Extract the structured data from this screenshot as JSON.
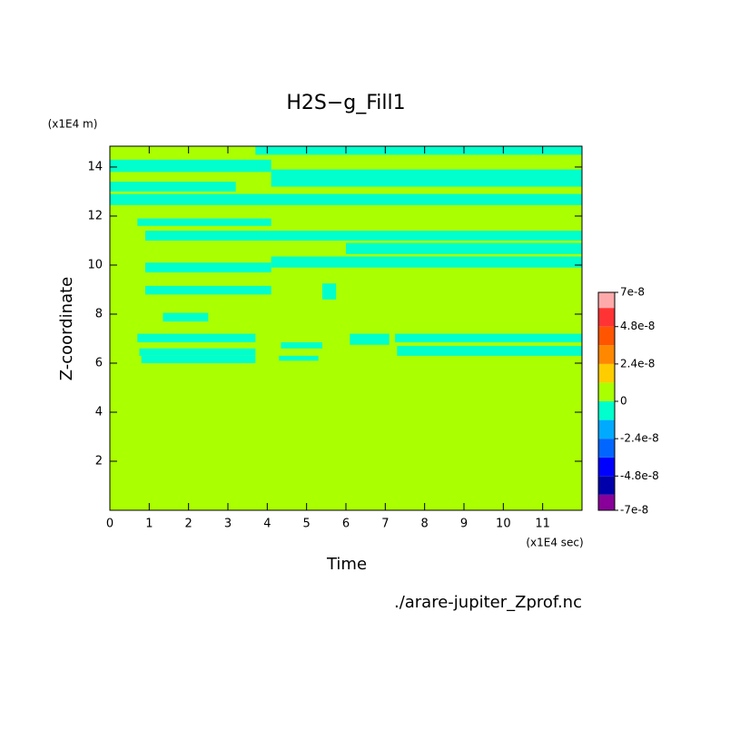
{
  "chart_data": {
    "type": "contour",
    "title": "H2S−g_Fill1",
    "x_label": "Time",
    "x_unit": "(x1E4 sec)",
    "y_label": "Z-coordinate",
    "y_unit": "(x1E4 m)",
    "source": "./arare-jupiter_Zprof.nc",
    "xlim": [
      0,
      12
    ],
    "xticks": [
      0,
      1,
      2,
      3,
      4,
      5,
      6,
      7,
      8,
      9,
      10,
      11
    ],
    "ylim": [
      0,
      14.85
    ],
    "yticks": [
      2,
      4,
      6,
      8,
      10,
      12,
      14
    ],
    "levels": [
      -7e-08,
      -6e-08,
      -4.8e-08,
      -3.6e-08,
      -2.4e-08,
      -1.2e-08,
      0,
      1.2e-08,
      2.4e-08,
      3.6e-08,
      4.8e-08,
      6e-08,
      7e-08
    ],
    "colors": [
      "#880099",
      "#0000aa",
      "#0000ff",
      "#0066ff",
      "#00aaff",
      "#00ffcc",
      "#aaff00",
      "#ffcc00",
      "#ff8800",
      "#ff5500",
      "#ff3333",
      "#ffaaaa"
    ],
    "colorbar_ticks": [
      7e-08,
      4.8e-08,
      2.4e-08,
      0,
      -2.4e-08,
      -4.8e-08,
      -7e-08
    ],
    "background_value": 1e-09,
    "regions": [
      {
        "x": [
          3.7,
          12
        ],
        "y": [
          14.5,
          14.85
        ],
        "value": -6e-09
      },
      {
        "x": [
          0,
          4.1
        ],
        "y": [
          13.8,
          14.3
        ],
        "value": -6e-09
      },
      {
        "x": [
          4.1,
          12
        ],
        "y": [
          13.2,
          13.9
        ],
        "value": -6e-09
      },
      {
        "x": [
          0,
          3.2
        ],
        "y": [
          13.0,
          13.4
        ],
        "value": -6e-09
      },
      {
        "x": [
          0,
          12
        ],
        "y": [
          12.45,
          12.9
        ],
        "value": -6e-09
      },
      {
        "x": [
          0.7,
          4.1
        ],
        "y": [
          11.6,
          11.9
        ],
        "value": -6e-09
      },
      {
        "x": [
          0.9,
          12
        ],
        "y": [
          11.0,
          11.4
        ],
        "value": -6e-09
      },
      {
        "x": [
          6,
          12
        ],
        "y": [
          10.45,
          10.9
        ],
        "value": -6e-09
      },
      {
        "x": [
          4.1,
          12
        ],
        "y": [
          9.9,
          10.35
        ],
        "value": -6e-09
      },
      {
        "x": [
          0.9,
          4.1
        ],
        "y": [
          9.7,
          10.1
        ],
        "value": -6e-09
      },
      {
        "x": [
          0.9,
          4.1
        ],
        "y": [
          8.8,
          9.15
        ],
        "value": -6e-09
      },
      {
        "x": [
          5.4,
          5.75
        ],
        "y": [
          8.6,
          9.25
        ],
        "value": -6e-09
      },
      {
        "x": [
          1.35,
          2.5
        ],
        "y": [
          7.7,
          8.05
        ],
        "value": -6e-09
      },
      {
        "x": [
          0.7,
          3.7
        ],
        "y": [
          6.85,
          7.2
        ],
        "value": -6e-09
      },
      {
        "x": [
          6.1,
          7.1
        ],
        "y": [
          6.75,
          7.2
        ],
        "value": -6e-09
      },
      {
        "x": [
          7.25,
          12
        ],
        "y": [
          6.85,
          7.2
        ],
        "value": -6e-09
      },
      {
        "x": [
          4.35,
          5.4
        ],
        "y": [
          6.6,
          6.85
        ],
        "value": -6e-09
      },
      {
        "x": [
          0.75,
          3.7
        ],
        "y": [
          6.3,
          6.6
        ],
        "value": -6e-09
      },
      {
        "x": [
          7.3,
          12
        ],
        "y": [
          6.3,
          6.7
        ],
        "value": -6e-09
      },
      {
        "x": [
          0.8,
          3.7
        ],
        "y": [
          6.0,
          6.3
        ],
        "value": -6e-09
      },
      {
        "x": [
          4.3,
          5.3
        ],
        "y": [
          6.1,
          6.3
        ],
        "value": -6e-09
      }
    ]
  }
}
